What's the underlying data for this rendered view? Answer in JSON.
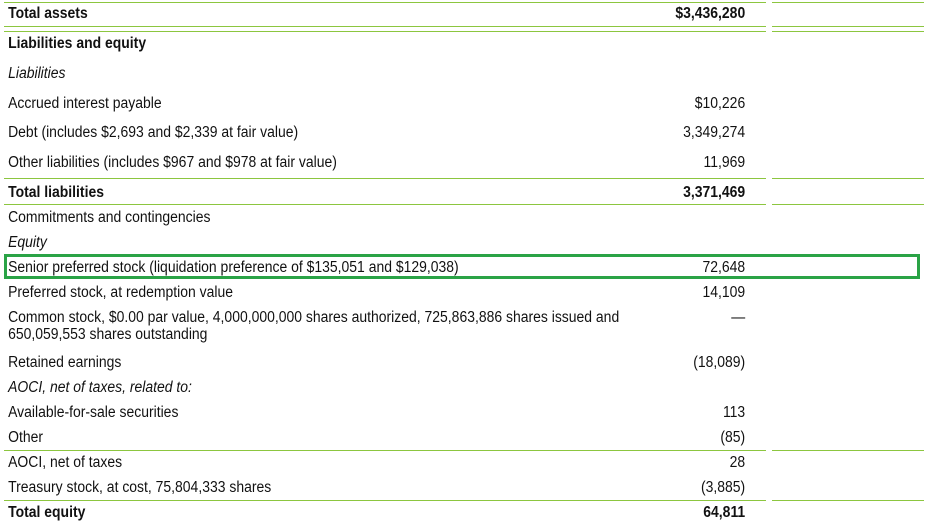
{
  "rows": [
    {
      "label": "Total assets",
      "value": "$3,436,280"
    },
    {
      "label": "Liabilities and equity",
      "value": ""
    },
    {
      "label": "Liabilities",
      "value": ""
    },
    {
      "label": "Accrued interest payable",
      "value": "$10,226"
    },
    {
      "label": "Debt (includes $2,693 and $2,339 at fair value)",
      "value": "3,349,274"
    },
    {
      "label": "Other liabilities (includes $967 and $978 at fair value)",
      "value": "11,969"
    },
    {
      "label": "Total liabilities",
      "value": "3,371,469"
    },
    {
      "label": "Commitments and contingencies",
      "value": ""
    },
    {
      "label": "Equity",
      "value": ""
    },
    {
      "label": "Senior preferred stock (liquidation preference of $135,051 and $129,038)",
      "value": "72,648"
    },
    {
      "label": "Preferred stock, at redemption value",
      "value": "14,109"
    },
    {
      "label": "Common stock, $0.00 par value, 4,000,000,000 shares authorized, 725,863,886 shares issued and",
      "label2": "650,059,553 shares outstanding",
      "value": "—"
    },
    {
      "label": "Retained earnings",
      "value": "(18,089)"
    },
    {
      "label": "AOCI, net of taxes, related to:",
      "value": ""
    },
    {
      "label": "Available-for-sale securities",
      "value": "113"
    },
    {
      "label": "Other",
      "value": "(85)"
    },
    {
      "label": "AOCI, net of taxes",
      "value": "28"
    },
    {
      "label": "Treasury stock, at cost, 75,804,333 shares",
      "value": "(3,885)"
    },
    {
      "label": "Total equity",
      "value": "64,811"
    }
  ],
  "colors": {
    "rule": "#8cc63f",
    "highlight": "#2aa346"
  }
}
